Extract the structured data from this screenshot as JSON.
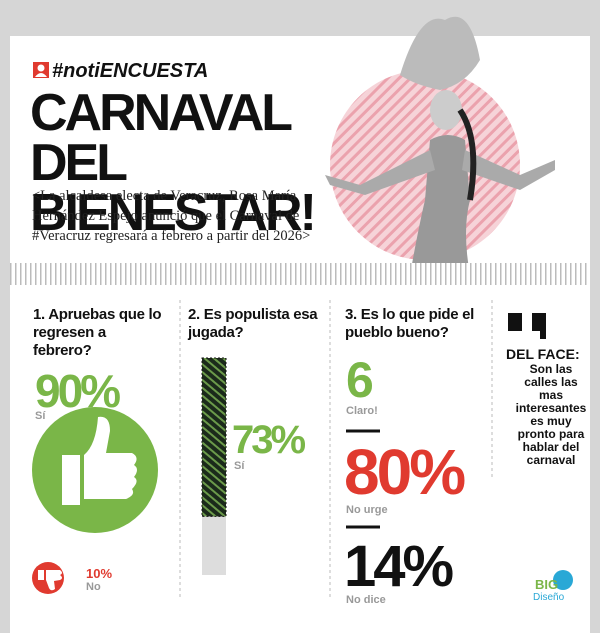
{
  "header": {
    "tag": "#notiENCUESTA",
    "title": "CARNAVAL DEL BIENESTAR!",
    "subtitle": "<La alcaldesa electa de Veracruz, Rosa María Hernández Espejo anunció que el Carnaval de #Veracruz regresará a febrero a partir del 2026>"
  },
  "questions": [
    {
      "question": "1. Apruebas que lo regresen a febrero?",
      "answers": [
        {
          "value": "90%",
          "label": "Sí"
        },
        {
          "value": "10%",
          "label": "No"
        }
      ]
    },
    {
      "question": "2. Es populista esa jugada?",
      "value": 73,
      "value_label": "73%",
      "label": "Sí"
    },
    {
      "question": "3. Es lo que pide el pueblo bueno?",
      "answers": [
        {
          "value": "6",
          "label": "Claro!"
        },
        {
          "value": "80%",
          "label": "No urge"
        },
        {
          "value": "14%",
          "label": "No dice"
        }
      ]
    }
  ],
  "comment": {
    "title": "DEL FACE:",
    "text": "Son las calles las mas interesantes es muy pronto para hablar del carnaval"
  },
  "logo": {
    "name": "BIG",
    "subtitle": "Diseño"
  }
}
